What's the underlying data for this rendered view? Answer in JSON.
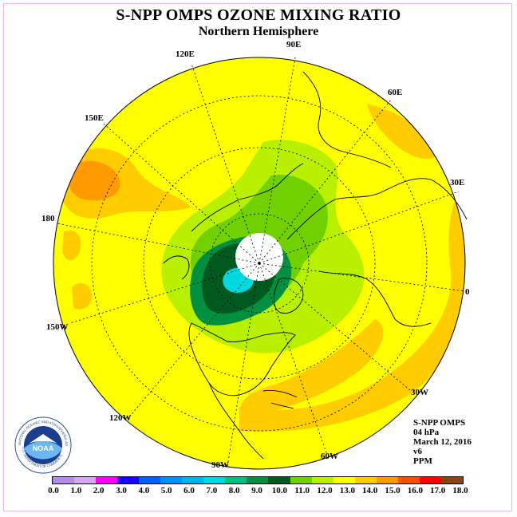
{
  "title": "S-NPP OMPS OZONE MIXING RATIO",
  "subtitle": "Northern Hemisphere",
  "longitude_labels": {
    "lon_90e": "90E",
    "lon_60e": "60E",
    "lon_30e": "30E",
    "lon_0": "0",
    "lon_30w": "30W",
    "lon_60w": "60W",
    "lon_90w": "90W",
    "lon_120w": "120W",
    "lon_150w": "150W",
    "lon_180": "180",
    "lon_150e": "150E",
    "lon_120e": "120E"
  },
  "info": {
    "instrument": "S-NPP OMPS",
    "pressure": "04 hPa",
    "date": "March 12, 2016",
    "version": "v6",
    "units": "PPM"
  },
  "logo": {
    "text": "NOAA",
    "ring_text": "NATIONAL OCEANIC AND ATMOSPHERIC ADMINISTRATION",
    "ring_text_bottom": "U.S. DEPARTMENT OF COMMERCE"
  },
  "colorbar": {
    "tick_labels": [
      "0.0",
      "1.0",
      "2.0",
      "3.0",
      "4.0",
      "5.0",
      "6.0",
      "7.0",
      "8.0",
      "9.0",
      "10.0",
      "11.0",
      "12.0",
      "13.0",
      "14.0",
      "15.0",
      "16.0",
      "17.0",
      "18.0"
    ],
    "colors": [
      "#b38be8",
      "#d8a8f0",
      "#ff00ff",
      "#1a00ff",
      "#0060ff",
      "#0090ff",
      "#00b4f0",
      "#00d8e0",
      "#00c080",
      "#009040",
      "#005a20",
      "#70d000",
      "#b8f000",
      "#ffff00",
      "#ffcc00",
      "#ff9a00",
      "#ff5000",
      "#ff0000",
      "#8b4513"
    ]
  },
  "map_colors": {
    "background": "#ffff00",
    "orange_light": "#ffcc00",
    "orange": "#ff9a00",
    "green_light": "#b8f000",
    "green": "#70d000",
    "green_dark": "#009040",
    "green_darkest": "#005a20",
    "teal": "#00d8e0",
    "polar_gap": "#ffffff"
  }
}
